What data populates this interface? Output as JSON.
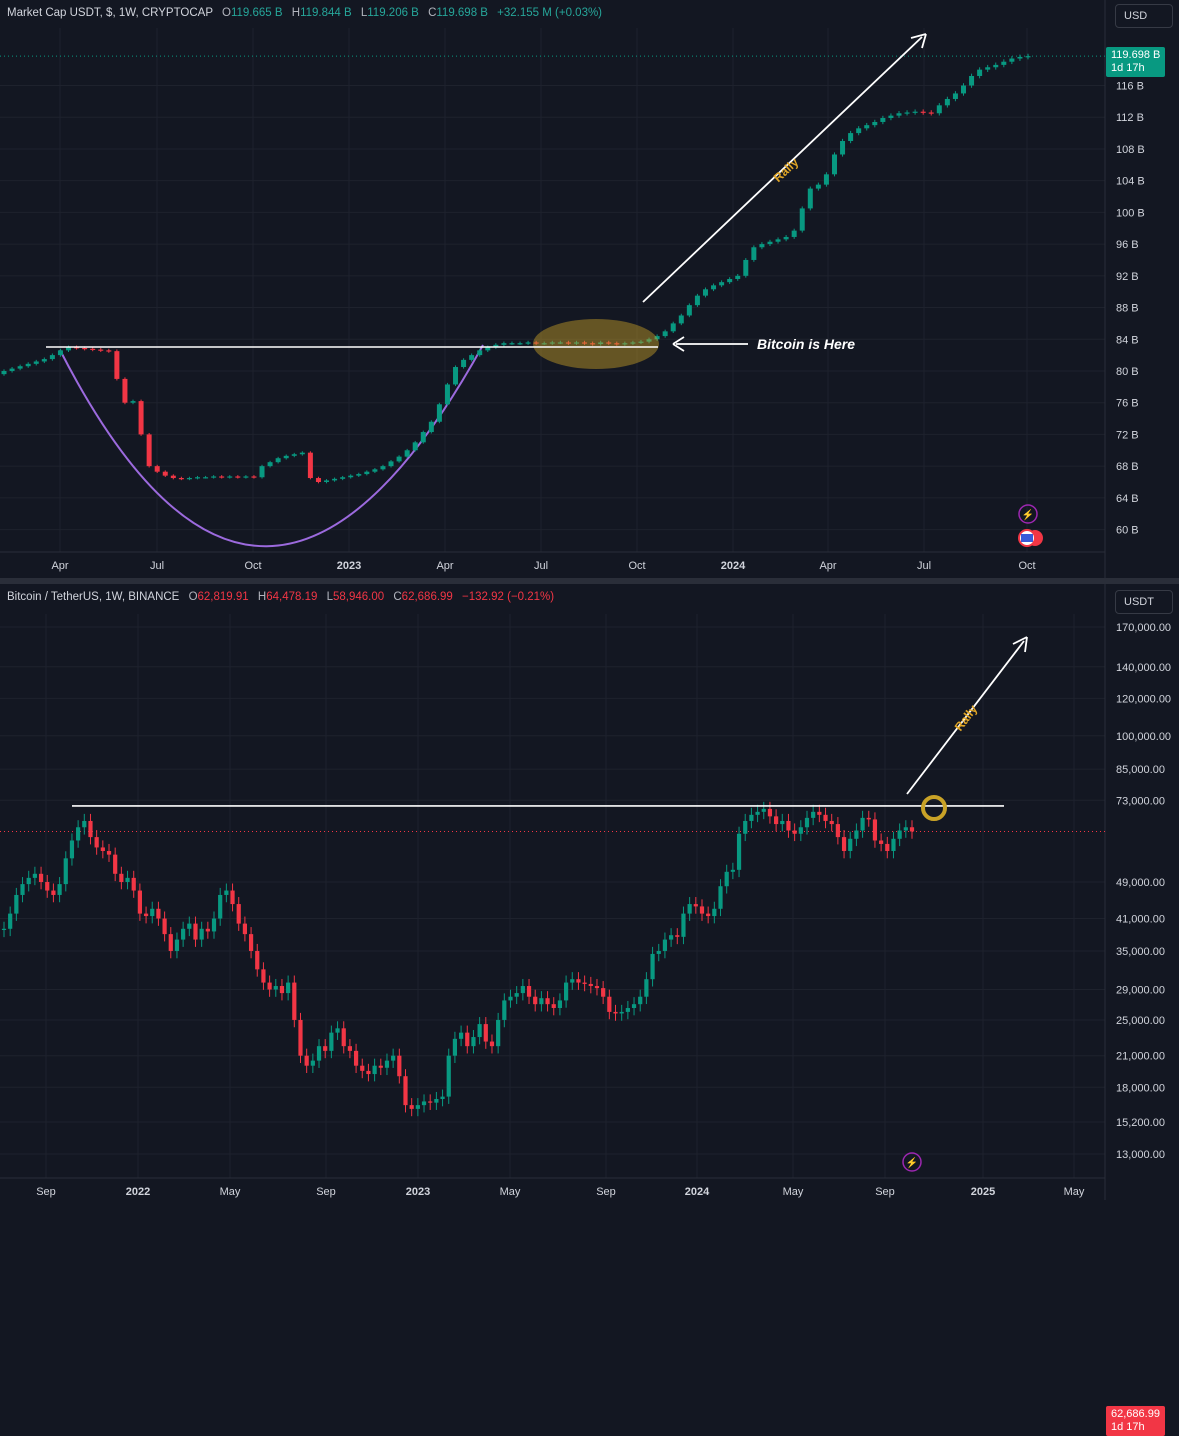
{
  "top": {
    "legend": {
      "name": "Market Cap USDT, $, 1W, CRYPTOCAP",
      "o_label": "O",
      "o": "119.665 B",
      "h_label": "H",
      "h": "119.844 B",
      "l_label": "L",
      "l": "119.206 B",
      "c_label": "C",
      "c": "119.698 B",
      "change": "+32.155 M (+0.03%)"
    },
    "unit": "USD",
    "badge_price": "119.698 B",
    "badge_time": "1d 17h",
    "annotation_arrow_label": "Rally",
    "annotation_here": "Bitcoin is Here"
  },
  "bottom": {
    "legend": {
      "name": "Bitcoin / TetherUS, 1W, BINANCE",
      "o_label": "O",
      "o": "62,819.91",
      "h_label": "H",
      "h": "64,478.19",
      "l_label": "L",
      "l": "58,946.00",
      "c_label": "C",
      "c": "62,686.99",
      "change": "−132.92 (−0.21%)"
    },
    "unit": "USDT",
    "badge_price": "62,686.99",
    "badge_time": "1d 17h",
    "annotation_arrow_label": "Rally"
  },
  "chart_data": [
    {
      "type": "candlestick",
      "title": "Market Cap USDT, $, 1W, CRYPTOCAP",
      "y_unit": "B",
      "y_ticks": [
        "116 B",
        "112 B",
        "108 B",
        "104 B",
        "100 B",
        "96 B",
        "92 B",
        "88 B",
        "84 B",
        "80 B",
        "76 B",
        "72 B",
        "68 B",
        "64 B",
        "60 B"
      ],
      "x_ticks": [
        "Apr",
        "Jul",
        "Oct",
        "2023",
        "Apr",
        "Jul",
        "Oct",
        "2024",
        "Apr",
        "Jul",
        "Oct"
      ],
      "colors": {
        "up": "#089981",
        "down": "#f23645",
        "cup": "#9c6ade",
        "highlight": "#c9a227"
      },
      "weekly_close": [
        80.0,
        80.3,
        80.6,
        80.9,
        81.2,
        81.5,
        82.0,
        82.6,
        83.0,
        82.9,
        82.8,
        82.7,
        82.6,
        82.5,
        79.0,
        76.0,
        76.2,
        72.0,
        68.0,
        67.3,
        66.8,
        66.5,
        66.4,
        66.5,
        66.6,
        66.6,
        66.7,
        66.6,
        66.7,
        66.6,
        66.7,
        66.6,
        68.0,
        68.5,
        69.0,
        69.3,
        69.5,
        69.7,
        66.5,
        66.0,
        66.2,
        66.4,
        66.6,
        66.8,
        67.0,
        67.3,
        67.6,
        68.0,
        68.6,
        69.2,
        70.0,
        71.0,
        72.3,
        73.6,
        75.8,
        78.3,
        80.5,
        81.4,
        82.0,
        82.6,
        83.0,
        83.3,
        83.5,
        83.5,
        83.5,
        83.6,
        83.5,
        83.5,
        83.6,
        83.6,
        83.5,
        83.6,
        83.5,
        83.4,
        83.6,
        83.5,
        83.4,
        83.5,
        83.6,
        83.7,
        84.0,
        84.4,
        85.0,
        86.0,
        87.0,
        88.3,
        89.5,
        90.3,
        90.8,
        91.2,
        91.6,
        92.0,
        94.0,
        95.6,
        96.0,
        96.3,
        96.6,
        96.9,
        97.7,
        100.5,
        103.0,
        103.5,
        104.8,
        107.3,
        109.0,
        110.0,
        110.6,
        111.0,
        111.4,
        111.9,
        112.2,
        112.5,
        112.6,
        112.7,
        112.6,
        112.5,
        113.5,
        114.3,
        115.0,
        116.0,
        117.2,
        118.0,
        118.3,
        118.6,
        119.0,
        119.4,
        119.6,
        119.7
      ]
    },
    {
      "type": "candlestick",
      "title": "Bitcoin / TetherUS, 1W, BINANCE",
      "y_ticks": [
        "170,000.00",
        "140,000.00",
        "120,000.00",
        "100,000.00",
        "85,000.00",
        "73,000.00",
        "49,000.00",
        "41,000.00",
        "35,000.00",
        "29,000.00",
        "25,000.00",
        "21,000.00",
        "18,000.00",
        "15,200.00",
        "13,000.00"
      ],
      "x_ticks": [
        "Sep",
        "2022",
        "May",
        "Sep",
        "2023",
        "May",
        "Sep",
        "2024",
        "May",
        "Sep",
        "2025",
        "May"
      ],
      "resistance": 71000,
      "colors": {
        "up": "#089981",
        "down": "#f23645",
        "highlight": "#c9a227"
      },
      "weekly_close": [
        39000,
        42000,
        46000,
        48500,
        50000,
        51000,
        49000,
        47000,
        46000,
        48500,
        55000,
        60000,
        64000,
        66000,
        61000,
        58000,
        57000,
        56000,
        51000,
        49000,
        50000,
        47000,
        42000,
        41500,
        43000,
        41000,
        38000,
        35000,
        37000,
        39000,
        40000,
        37000,
        39000,
        38500,
        41000,
        46000,
        47000,
        44000,
        40000,
        38000,
        35000,
        32000,
        30000,
        29000,
        29500,
        28500,
        30000,
        25000,
        21000,
        20000,
        20500,
        22000,
        21500,
        23500,
        24000,
        22000,
        21500,
        20000,
        19500,
        19200,
        20000,
        19800,
        20500,
        21000,
        19000,
        16500,
        16200,
        16500,
        16800,
        16700,
        17000,
        17200,
        21000,
        22800,
        23500,
        22000,
        23000,
        24500,
        22500,
        22000,
        25000,
        27500,
        28000,
        28500,
        29500,
        28000,
        27000,
        27800,
        27000,
        26500,
        27500,
        30000,
        30500,
        30000,
        29800,
        29500,
        29200,
        28000,
        26000,
        25800,
        26000,
        26500,
        27000,
        28000,
        30500,
        34500,
        35000,
        37000,
        37800,
        37500,
        42000,
        44000,
        43500,
        42000,
        41500,
        43000,
        48000,
        51500,
        52000,
        62000,
        66000,
        68000,
        69000,
        70000,
        67500,
        65000,
        66000,
        63000,
        62000,
        64000,
        67000,
        69000,
        68000,
        66000,
        65000,
        61000,
        57000,
        60500,
        63000,
        67000,
        66500,
        60000,
        59000,
        57000,
        60500,
        63000,
        64000,
        62700
      ]
    }
  ]
}
